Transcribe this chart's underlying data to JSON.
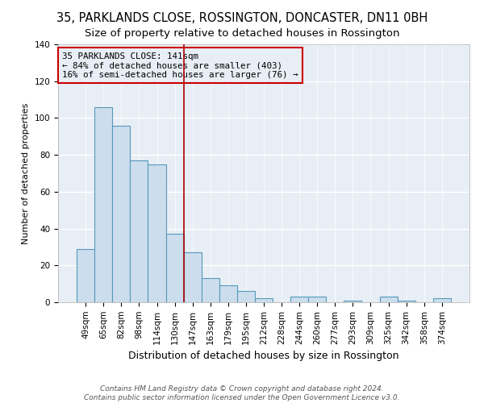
{
  "title": "35, PARKLANDS CLOSE, ROSSINGTON, DONCASTER, DN11 0BH",
  "subtitle": "Size of property relative to detached houses in Rossington",
  "xlabel": "Distribution of detached houses by size in Rossington",
  "ylabel": "Number of detached properties",
  "bar_labels": [
    "49sqm",
    "65sqm",
    "82sqm",
    "98sqm",
    "114sqm",
    "130sqm",
    "147sqm",
    "163sqm",
    "179sqm",
    "195sqm",
    "212sqm",
    "228sqm",
    "244sqm",
    "260sqm",
    "277sqm",
    "293sqm",
    "309sqm",
    "325sqm",
    "342sqm",
    "358sqm",
    "374sqm"
  ],
  "bar_values": [
    29,
    106,
    96,
    77,
    75,
    37,
    27,
    13,
    9,
    6,
    2,
    0,
    3,
    3,
    0,
    1,
    0,
    3,
    1,
    0,
    2
  ],
  "bar_color": "#ccdded",
  "bar_edge_color": "#5599bb",
  "vline_color": "#aa0000",
  "vline_pos": 6,
  "annotation_title": "35 PARKLANDS CLOSE: 141sqm",
  "annotation_line1": "← 84% of detached houses are smaller (403)",
  "annotation_line2": "16% of semi-detached houses are larger (76) →",
  "annotation_box_edgecolor": "#cc0000",
  "ylim": [
    0,
    140
  ],
  "yticks": [
    0,
    20,
    40,
    60,
    80,
    100,
    120,
    140
  ],
  "footer1": "Contains HM Land Registry data © Crown copyright and database right 2024.",
  "footer2": "Contains public sector information licensed under the Open Government Licence v3.0.",
  "bg_color": "#ffffff",
  "plot_bg_color": "#e8eef5",
  "grid_color": "#ffffff",
  "title_fontsize": 10.5,
  "subtitle_fontsize": 9.5,
  "ylabel_fontsize": 8,
  "xlabel_fontsize": 9,
  "tick_fontsize": 7.5,
  "annotation_fontsize": 7.8,
  "footer_fontsize": 6.5
}
